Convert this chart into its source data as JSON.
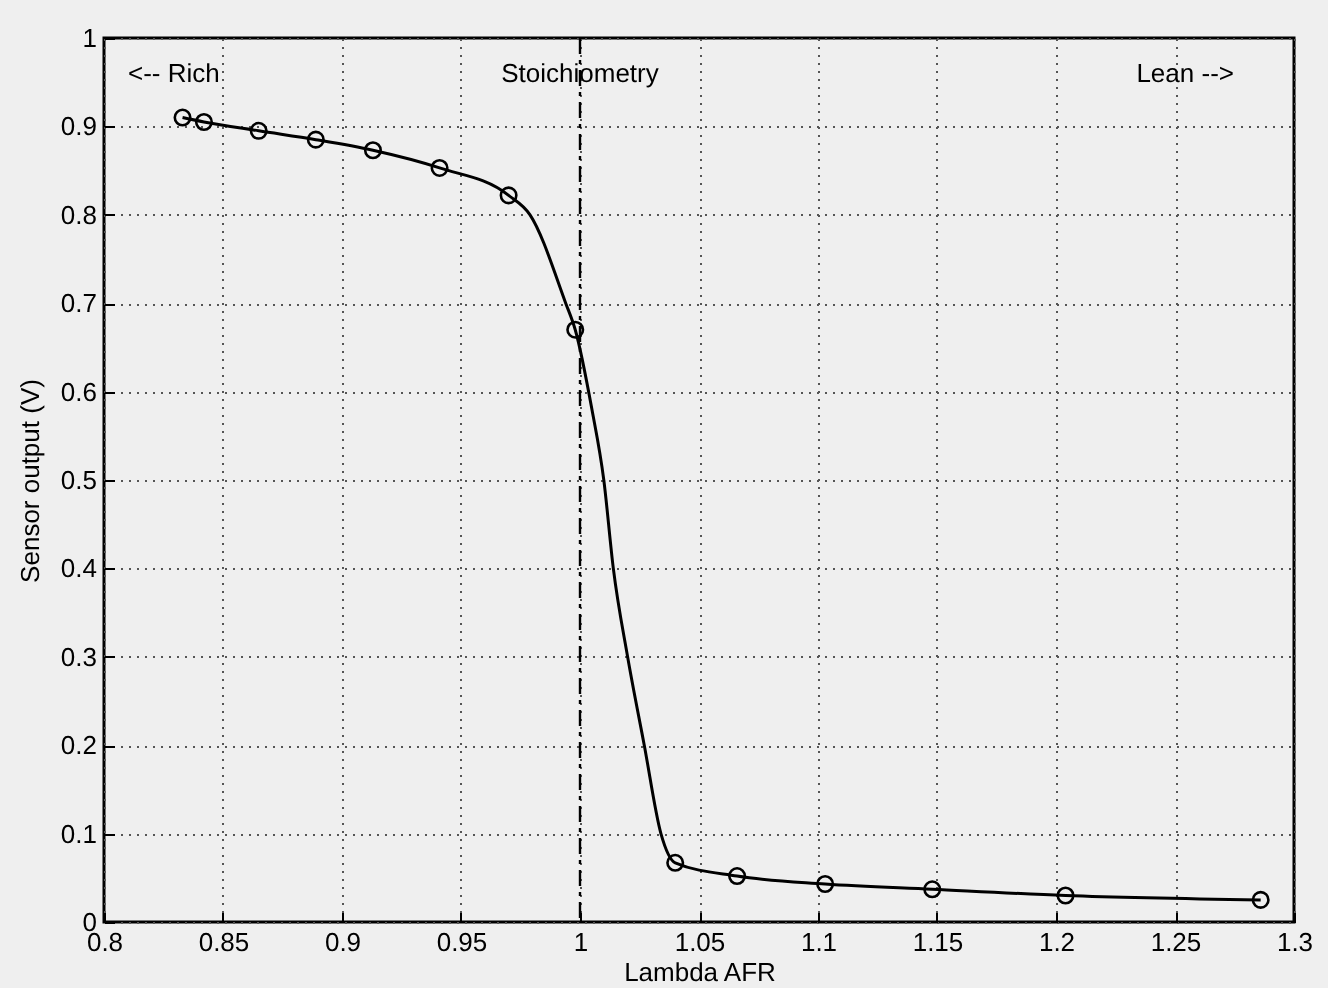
{
  "chart_data": {
    "type": "line",
    "xlabel": "Lambda AFR",
    "ylabel": "Sensor output (V)",
    "xlim": [
      0.8,
      1.3
    ],
    "xticks": [
      0.8,
      0.85,
      0.9,
      0.95,
      1,
      1.05,
      1.1,
      1.15,
      1.2,
      1.25,
      1.3
    ],
    "ylim": [
      0,
      1
    ],
    "yticks": [
      0,
      0.1,
      0.2,
      0.3,
      0.4,
      0.5,
      0.6,
      0.7,
      0.8,
      0.9,
      1
    ],
    "grid": true,
    "series": [
      {
        "color": "#000000",
        "x": [
          0.833,
          0.842,
          0.865,
          0.889,
          0.913,
          0.941,
          0.97,
          0.979,
          0.994,
          0.998,
          1.005,
          1.01,
          1.014,
          1.02,
          1.027,
          1.034,
          1.04,
          1.066,
          1.103,
          1.148,
          1.204,
          1.286
        ],
        "values": [
          0.91,
          0.905,
          0.895,
          0.885,
          0.873,
          0.853,
          0.822,
          0.8,
          0.7,
          0.67,
          0.58,
          0.5,
          0.4,
          0.3,
          0.2,
          0.1,
          0.067,
          0.052,
          0.043,
          0.037,
          0.03,
          0.025
        ]
      },
      {
        "type": "scatter",
        "marker": "circle",
        "color": "#000000",
        "x": [
          0.833,
          0.842,
          0.865,
          0.889,
          0.913,
          0.941,
          0.97,
          0.998,
          1.04,
          1.066,
          1.103,
          1.148,
          1.204,
          1.286
        ],
        "values": [
          0.91,
          0.905,
          0.895,
          0.885,
          0.873,
          0.853,
          0.822,
          0.67,
          0.067,
          0.052,
          0.043,
          0.037,
          0.03,
          0.025
        ]
      }
    ],
    "ref_lines": [
      {
        "axis": "x",
        "value": 1,
        "label": "Stoichiometry",
        "line_style": "dashed",
        "color": "#000000"
      }
    ],
    "annotations": [
      "<-- Rich",
      "Lean -->"
    ]
  }
}
